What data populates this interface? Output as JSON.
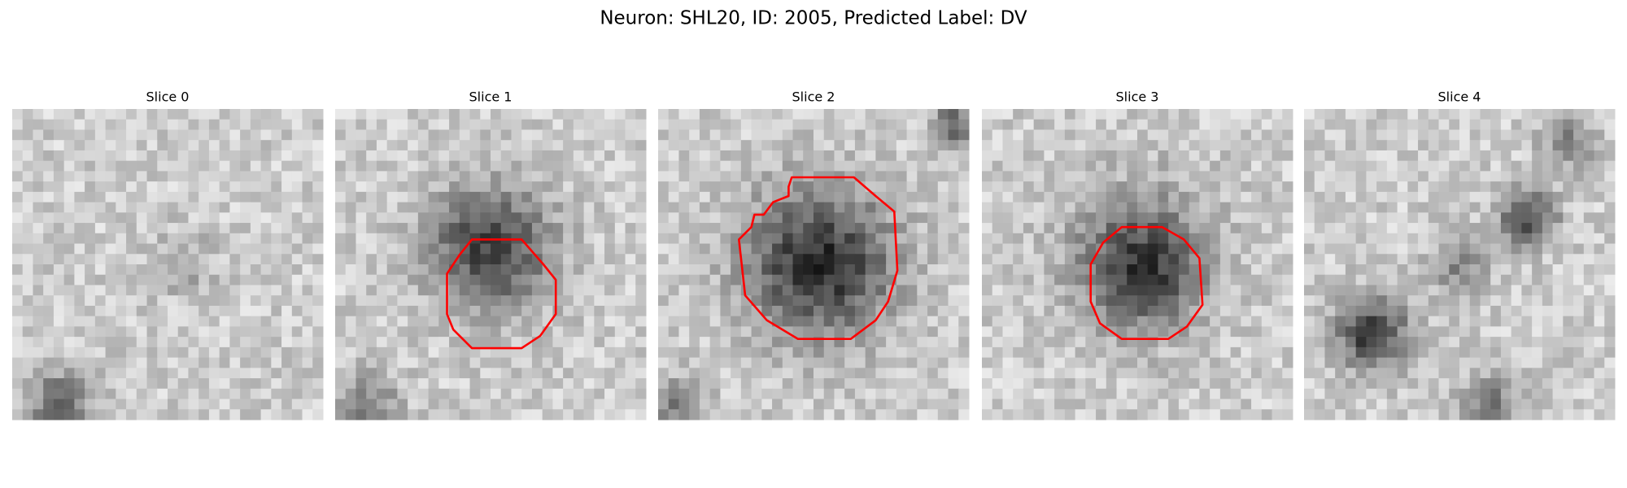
{
  "figure": {
    "title": "Neuron: SHL20, ID: 2005, Predicted Label: DV",
    "panels": [
      {
        "title": "Slice 0"
      },
      {
        "title": "Slice 1"
      },
      {
        "title": "Slice 2"
      },
      {
        "title": "Slice 3"
      },
      {
        "title": "Slice 4"
      }
    ]
  }
}
